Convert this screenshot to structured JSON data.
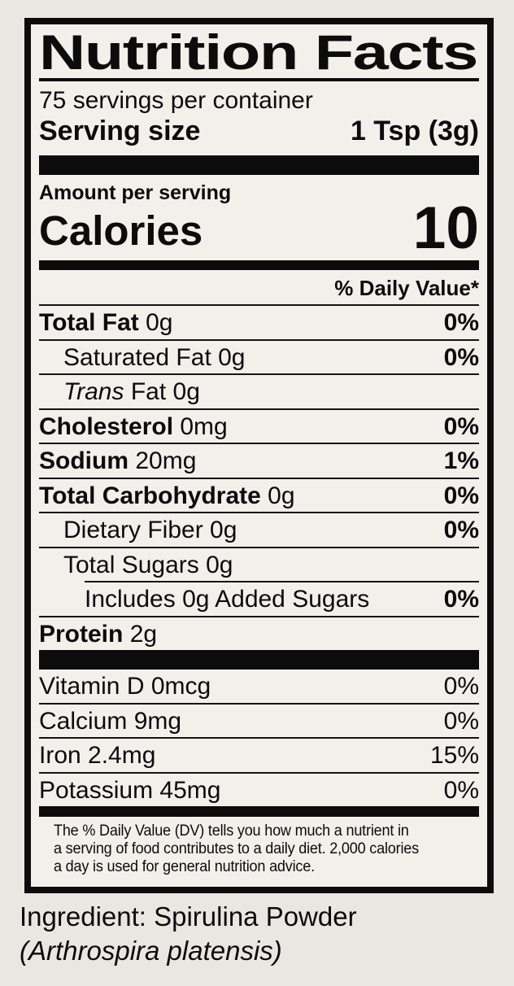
{
  "colors": {
    "page_background": "#e9e7e2",
    "label_background": "#f2f0ea",
    "ink": "#0c0c0c"
  },
  "label": {
    "title": "Nutrition Facts",
    "servings_per_container": "75 servings per container",
    "serving_size": {
      "label": "Serving size",
      "value": "1 Tsp (3g)"
    },
    "amount_per_serving": "Amount per serving",
    "calories": {
      "label": "Calories",
      "value": "10"
    },
    "daily_value_header": "% Daily Value*",
    "nutrient_rows": [
      {
        "name": "Total Fat",
        "amount": "0g",
        "bold": true,
        "dv": "0%",
        "indent": 0
      },
      {
        "name": "Saturated Fat",
        "amount": "0g",
        "bold": false,
        "dv": "0%",
        "indent": 1
      },
      {
        "italic": "Trans",
        "name": "Fat",
        "amount": "0g",
        "bold": false,
        "dv": null,
        "indent": 1
      },
      {
        "name": "Cholesterol",
        "amount": "0mg",
        "bold": true,
        "dv": "0%",
        "indent": 0
      },
      {
        "name": "Sodium",
        "amount": "20mg",
        "bold": true,
        "dv": "1%",
        "indent": 0
      },
      {
        "name": "Total Carbohydrate",
        "amount": "0g",
        "bold": true,
        "dv": "0%",
        "indent": 0
      },
      {
        "name": "Dietary Fiber",
        "amount": "0g",
        "bold": false,
        "dv": "0%",
        "indent": 1
      },
      {
        "name": "Total Sugars",
        "amount": "0g",
        "bold": false,
        "dv": null,
        "indent": 1,
        "no_border": true
      },
      {
        "name": "Includes 0g Added Sugars",
        "amount": "",
        "bold": false,
        "dv": "0%",
        "indent": 2,
        "sep_above": true
      },
      {
        "name": "Protein",
        "amount": "2g",
        "bold": true,
        "dv": null,
        "indent": 0,
        "no_border": true
      }
    ],
    "vitamin_rows": [
      {
        "name": "Vitamin D",
        "amount": "0mcg",
        "bold": false,
        "dv": "0%",
        "indent": 0
      },
      {
        "name": "Calcium",
        "amount": "9mg",
        "bold": false,
        "dv": "0%",
        "indent": 0
      },
      {
        "name": "Iron",
        "amount": "2.4mg",
        "bold": false,
        "dv": "15%",
        "indent": 0
      },
      {
        "name": "Potassium",
        "amount": "45mg",
        "bold": false,
        "dv": "0%",
        "indent": 0,
        "no_border": true
      }
    ],
    "footnote_lines": [
      "The % Daily Value (DV) tells you how much a nutrient in",
      "a serving of food contributes to a daily diet. 2,000 calories",
      "a day is used for general nutrition advice."
    ]
  },
  "ingredients": {
    "line1": "Ingredient: Spirulina Powder",
    "line2": "(Arthrospira platensis)"
  }
}
